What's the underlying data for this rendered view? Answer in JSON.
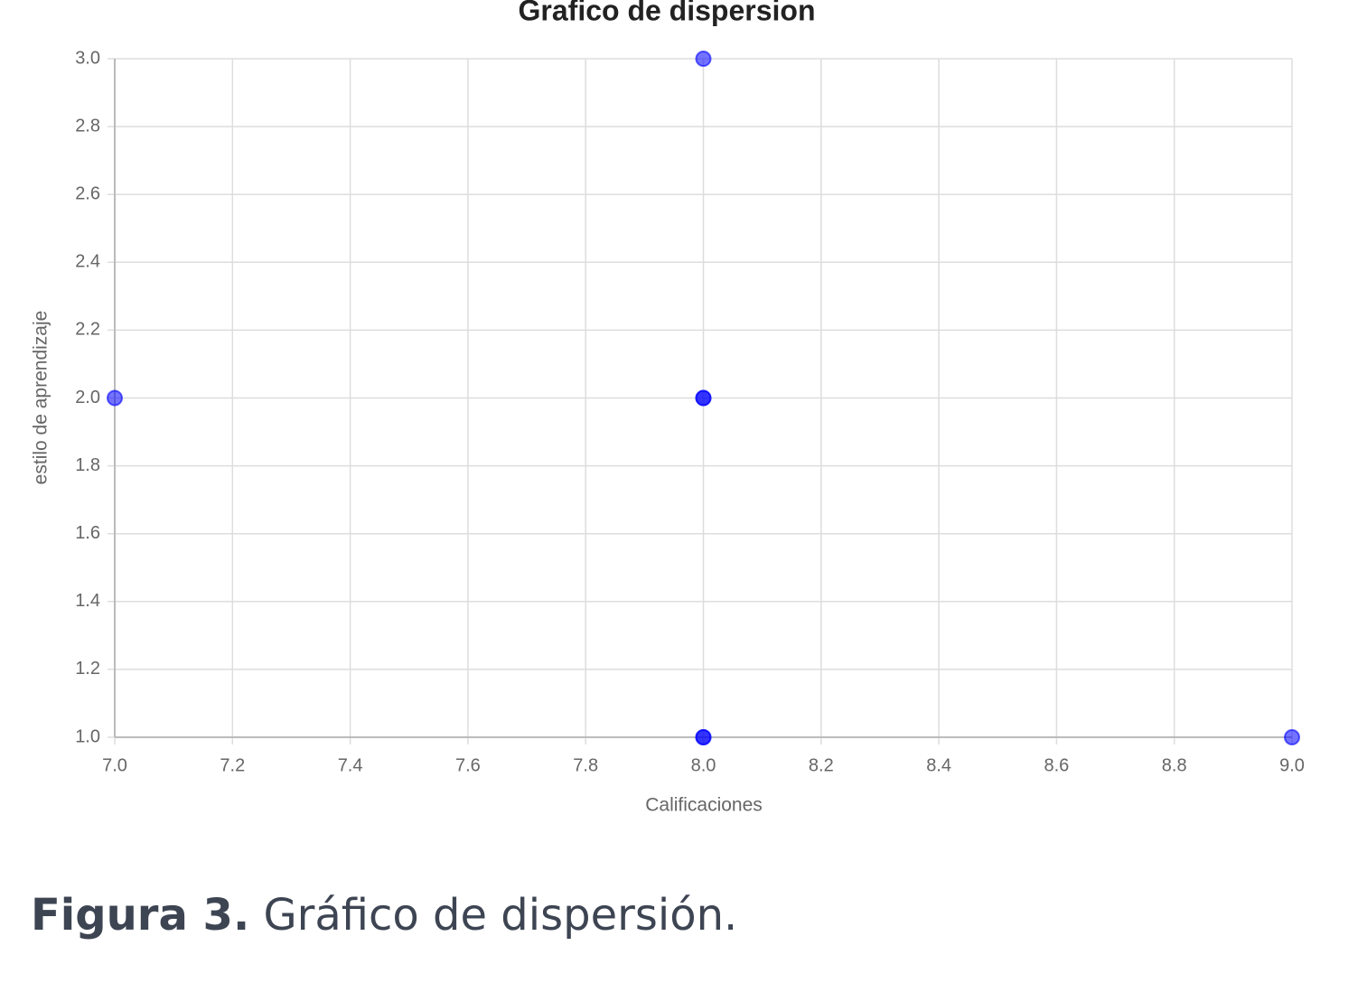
{
  "chart_data": {
    "type": "scatter",
    "title": "Grafico de dispersion",
    "x_label": "Calificaciones",
    "y_label": "estilo de aprendizaje",
    "series": [
      {
        "color": "#0000ff",
        "x": [
          7,
          8,
          8,
          8,
          8,
          8,
          9
        ],
        "values": [
          2,
          3,
          2,
          2,
          1,
          1,
          1
        ]
      }
    ],
    "xlim": [
      7,
      9
    ],
    "xticks": [
      {
        "value": 7,
        "label": "7.0"
      },
      7.2,
      7.4,
      7.6,
      7.8,
      {
        "value": 8,
        "label": "8.0"
      },
      8.2,
      8.4,
      8.6,
      8.8,
      {
        "value": 9,
        "label": "9.0"
      }
    ],
    "ylim": [
      1,
      3
    ],
    "yticks": [
      {
        "value": 1,
        "label": "1.0"
      },
      1.2,
      1.4,
      1.6,
      1.8,
      {
        "value": 2,
        "label": "2.0"
      },
      2.2,
      2.4,
      2.6,
      2.8,
      {
        "value": 3,
        "label": "3.0"
      }
    ],
    "grid": true
  },
  "caption": {
    "label": "Figura 3.",
    "text": "Gráfico de dispersión."
  }
}
